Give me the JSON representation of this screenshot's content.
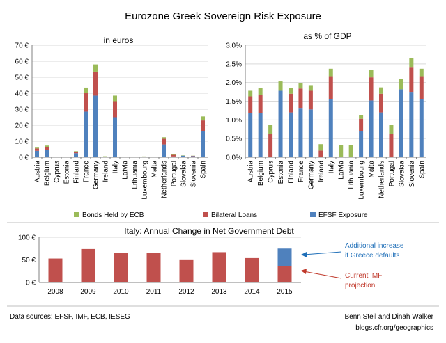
{
  "title": "Eurozone Greek Sovereign Risk Exposure",
  "colors": {
    "ecb": "#9bbb59",
    "bilateral": "#c0504d",
    "efsf": "#4f81bd",
    "grid": "#d9d9d9",
    "axis": "#808080"
  },
  "legend": {
    "ecb": "Bonds Held by ECB",
    "bilateral": "Bilateral Loans",
    "efsf": "EFSF Exposure"
  },
  "annotations": {
    "blue_line1": "Additional increase",
    "blue_line2": "if Greece defaults",
    "red_line1": "Current IMF",
    "red_line2": "projection"
  },
  "footer": {
    "sources": "Data sources: EFSF,  IMF, ECB, IESEG",
    "authors": "Benn Steil and Dinah Walker",
    "site": "blogs.cfr.org/geographics"
  },
  "chart_data": [
    {
      "type": "bar",
      "stacked": true,
      "title": "in euros",
      "ylim": [
        0,
        70
      ],
      "yticks": [
        "0 €",
        "10 €",
        "20 €",
        "30 €",
        "40 €",
        "50 €",
        "60 €",
        "70 €"
      ],
      "grid": true,
      "categories": [
        "Austria",
        "Belgium",
        "Cyprus",
        "Estonia",
        "Finland",
        "France",
        "Germany",
        "Ireland",
        "Italy",
        "Latvia",
        "Lithuania",
        "Luxembourg",
        "Malta",
        "Netherlands",
        "Portugal",
        "Slovakia",
        "Slovenia",
        "Spain"
      ],
      "series": [
        {
          "name": "EFSF Exposure",
          "values": [
            4.0,
            4.5,
            0.0,
            0.2,
            2.5,
            28.5,
            38.5,
            0.0,
            25.0,
            0.0,
            0.0,
            0.3,
            0.2,
            8.0,
            0.5,
            1.0,
            0.7,
            16.5
          ]
        },
        {
          "name": "Bilateral Loans",
          "values": [
            1.5,
            2.0,
            0.1,
            0.0,
            1.0,
            11.5,
            15.0,
            0.3,
            10.0,
            0.0,
            0.0,
            0.1,
            0.1,
            3.5,
            1.0,
            0.0,
            0.2,
            6.5
          ]
        },
        {
          "name": "Bonds Held by ECB",
          "values": [
            0.5,
            0.8,
            0.1,
            0.1,
            0.3,
            3.5,
            4.5,
            0.3,
            3.5,
            0.0,
            0.0,
            0.1,
            0.1,
            1.0,
            0.3,
            0.2,
            0.1,
            2.5
          ]
        }
      ]
    },
    {
      "type": "bar",
      "stacked": true,
      "title": "as % of GDP",
      "ylim": [
        0,
        3.0
      ],
      "yticks": [
        "0.0%",
        "0.5%",
        "1.0%",
        "1.5%",
        "2.0%",
        "2.5%",
        "3.0%"
      ],
      "grid": true,
      "categories": [
        "Austria",
        "Belgium",
        "Cyprus",
        "Estonia",
        "Finland",
        "France",
        "Germany",
        "Ireland",
        "Italy",
        "Latvia",
        "Lithuania",
        "Luxembourg",
        "Malta",
        "Netherlands",
        "Portugal",
        "Slovakia",
        "Slovenia",
        "Spain"
      ],
      "series": [
        {
          "name": "EFSF Exposure",
          "values": [
            1.18,
            1.18,
            0.0,
            1.78,
            1.2,
            1.32,
            1.28,
            0.0,
            1.55,
            0.0,
            0.0,
            0.7,
            1.52,
            1.2,
            0.0,
            1.82,
            1.75,
            1.55
          ]
        },
        {
          "name": "Bilateral Loans",
          "values": [
            0.45,
            0.48,
            0.62,
            0.0,
            0.5,
            0.52,
            0.5,
            0.18,
            0.62,
            0.0,
            0.0,
            0.33,
            0.62,
            0.5,
            0.62,
            0.0,
            0.65,
            0.62
          ]
        },
        {
          "name": "Bonds Held by ECB",
          "values": [
            0.15,
            0.2,
            0.25,
            0.25,
            0.15,
            0.15,
            0.15,
            0.17,
            0.2,
            0.32,
            0.32,
            0.1,
            0.2,
            0.17,
            0.25,
            0.28,
            0.25,
            0.2
          ]
        }
      ]
    },
    {
      "type": "bar",
      "stacked": true,
      "title": "Italy: Annual Change in Net Government  Debt",
      "ylim": [
        0,
        100
      ],
      "yticks": [
        "0 €",
        "50 €",
        "100 €"
      ],
      "grid": true,
      "categories": [
        "2008",
        "2009",
        "2010",
        "2011",
        "2012",
        "2013",
        "2014",
        "2015"
      ],
      "series": [
        {
          "name": "Current IMF projection",
          "values": [
            53,
            74,
            65,
            65,
            51,
            67,
            54,
            36
          ]
        },
        {
          "name": "Additional increase if Greece defaults",
          "values": [
            0,
            0,
            0,
            0,
            0,
            0,
            0,
            39
          ]
        }
      ]
    }
  ]
}
